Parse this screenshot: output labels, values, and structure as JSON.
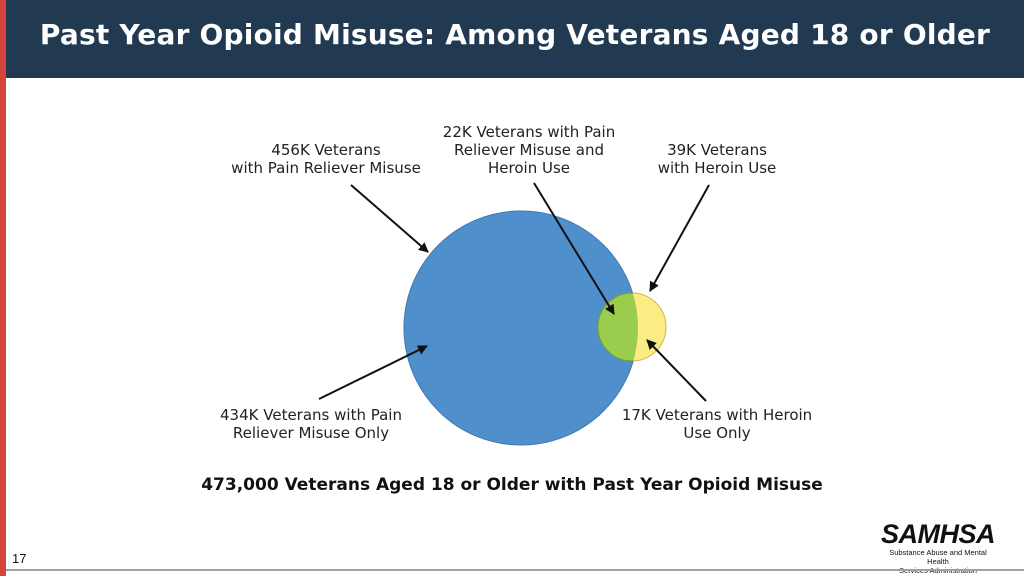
{
  "title": "Past Year Opioid Misuse: Among Veterans Aged 18 or Older",
  "labels": {
    "pain_reliever_misuse": "456K Veterans\nwith Pain Reliever Misuse",
    "both": "22K Veterans with Pain\nReliever Misuse and\nHeroin Use",
    "heroin_use": "39K Veterans\nwith Heroin Use",
    "pain_reliever_only": "434K Veterans with Pain\nReliever Misuse Only",
    "heroin_only": "17K Veterans with Heroin\nUse Only"
  },
  "summary": "473,000 Veterans Aged 18 or Older with Past Year Opioid Misuse",
  "page_number": "17",
  "logo": {
    "word": "SAMHSA",
    "subtitle": "Substance Abuse and Mental Health\nServices Administration"
  },
  "colors": {
    "pain_reliever_circle": "#4e8fcc",
    "heroin_circle": "#fbec86",
    "overlap": "#9acd4e",
    "title_bar": "#223a51"
  }
}
